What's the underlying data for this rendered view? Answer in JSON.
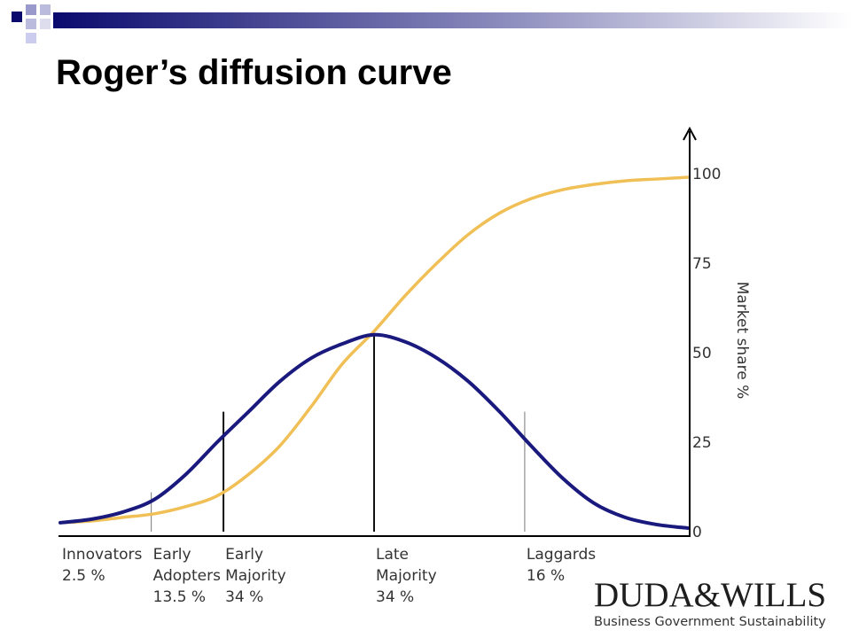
{
  "slide": {
    "title": "Roger’s diffusion curve"
  },
  "logo": {
    "name": "DUDA&WILLS",
    "tagline": "Business Government Sustainability"
  },
  "colors": {
    "bell_curve": "#1a1a7e",
    "s_curve": "#f0bf55",
    "axis": "#000000",
    "header_dark": "#0a0a6e",
    "header_mid": "#8888bb"
  },
  "chart_data": {
    "type": "line",
    "title": "",
    "xlabel": "",
    "ylabel": "Market share %",
    "ylim": [
      0,
      100
    ],
    "yticks": [
      "0",
      "25",
      "50",
      "75",
      "100"
    ],
    "grid": false,
    "x": [
      0,
      5,
      10,
      15,
      20,
      25,
      30,
      35,
      40,
      45,
      50,
      55,
      60,
      65,
      70,
      75,
      80,
      85,
      90,
      95,
      100
    ],
    "series": [
      {
        "values": [
          2.5,
          3.5,
          5.5,
          9,
          16,
          25,
          33.5,
          42,
          48.5,
          52.5,
          55,
          53,
          48.5,
          42,
          33.5,
          24,
          15,
          8,
          4,
          2,
          1
        ]
      },
      {
        "values": [
          2.5,
          3,
          4,
          5,
          7,
          10,
          16,
          24,
          35,
          47,
          56,
          66,
          75,
          83,
          89,
          93,
          95.5,
          97,
          98,
          98.5,
          99
        ]
      }
    ],
    "dividers": [
      {
        "x": 14.5,
        "y": 11
      },
      {
        "x": 26,
        "y": 33.5
      },
      {
        "x": 50,
        "y": 55
      },
      {
        "x": 74,
        "y": 33.5
      }
    ],
    "segments": [
      {
        "x": 0,
        "name": "Innovators",
        "share": "2.5 %"
      },
      {
        "x": 14.5,
        "name_lines": [
          "Early",
          "Adopters"
        ],
        "share": "13.5 %"
      },
      {
        "x": 26,
        "name_lines": [
          "Early",
          "Majority"
        ],
        "share": "34 %"
      },
      {
        "x": 50,
        "name_lines": [
          "Late",
          "Majority"
        ],
        "share": "34 %"
      },
      {
        "x": 74,
        "name": "Laggards",
        "share": "16 %"
      }
    ]
  }
}
